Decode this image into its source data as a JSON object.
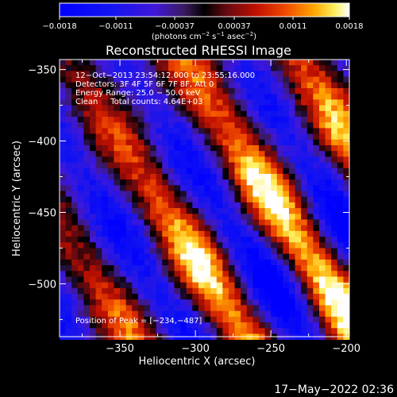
{
  "chart_data": {
    "type": "heatmap",
    "title": "Reconstructed RHESSI Image",
    "xlabel": "Heliocentric X (arcsec)",
    "ylabel": "Heliocentric Y (arcsec)",
    "xlim": [
      -390,
      -198
    ],
    "ylim": [
      -537,
      -343
    ],
    "xticks": [
      -350,
      -300,
      -250,
      -200
    ],
    "xtick_labels": [
      "−350",
      "−300",
      "−250",
      "−200"
    ],
    "yticks": [
      -350,
      -400,
      -450,
      -500
    ],
    "ytick_labels": [
      "−350",
      "−400",
      "−450",
      "−500"
    ],
    "colorbar": {
      "range": [
        -0.0018,
        0.0018
      ],
      "ticks": [
        -0.0018,
        -0.0011,
        -0.00037,
        0.00037,
        0.0011,
        0.0018
      ],
      "tick_labels": [
        "−0.0018",
        "−0.0011",
        "−0.00037",
        "0.00037",
        "0.0011",
        "0.0018"
      ],
      "unit_parts": [
        "(photons cm",
        "−2",
        " s",
        "−1",
        " asec",
        "−2",
        ")"
      ]
    },
    "annotations": {
      "time_range": "12−Oct−2013 23:54:12.000 to 23:55:16.000",
      "detectors": "Detectors: 3F 4F 5F 6F 7F 8F, Att 0",
      "energy_range": "Energy Range: 25.0 − 50.0 keV",
      "clean_total": "Clean     Total counts: 4.64E+03",
      "peak": "Position of Peak = [−234,−487]"
    },
    "peak": [
      -234,
      -487
    ],
    "grid": false,
    "pixel_size_arcsec": 4
  },
  "footer": {
    "date": "17−May−2022 02:36"
  }
}
